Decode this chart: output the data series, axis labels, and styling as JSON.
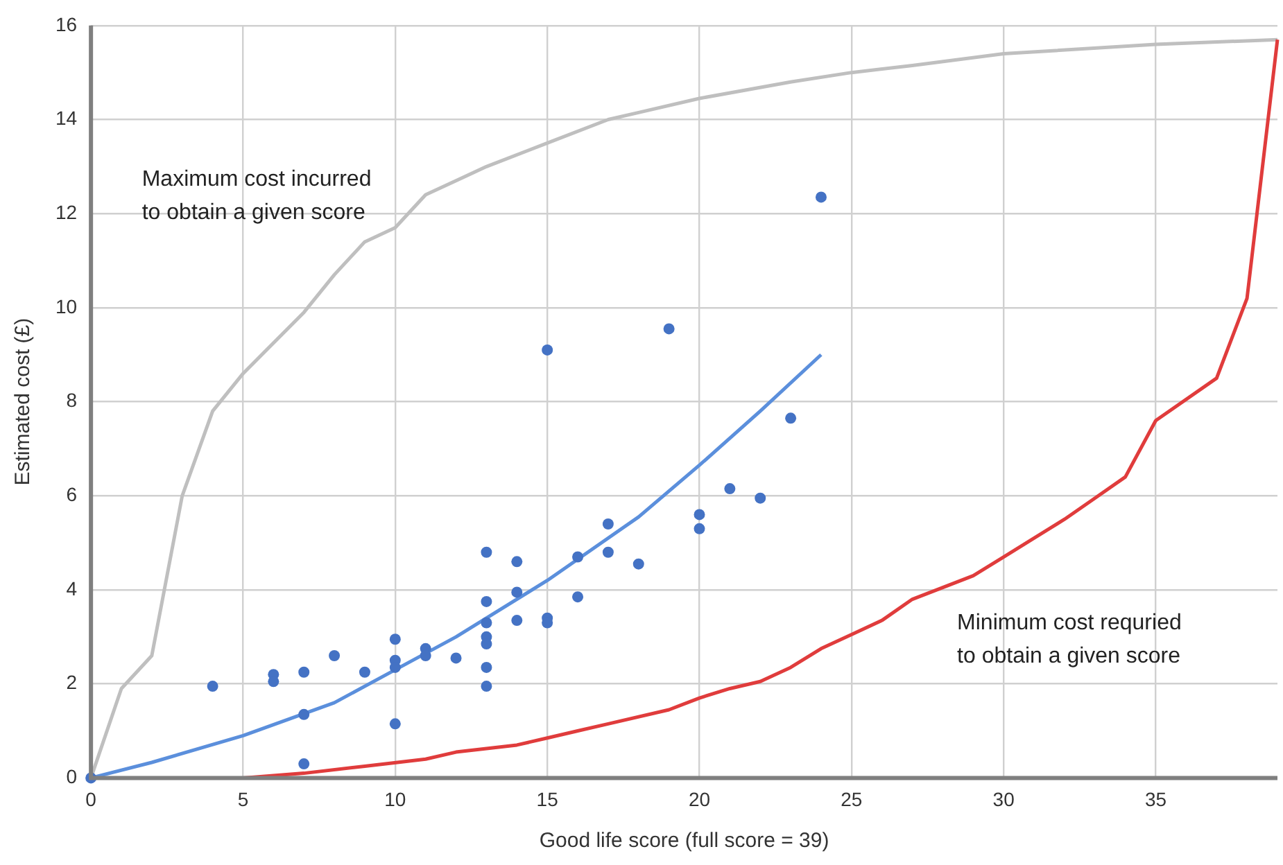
{
  "chart_data": {
    "type": "scatter",
    "xlabel": "Good life score (full score = 39)",
    "ylabel": "Estimated cost (£)",
    "xlim": [
      0,
      39
    ],
    "xticks": [
      0,
      5,
      10,
      15,
      20,
      25,
      30,
      35
    ],
    "ylim": [
      0,
      16
    ],
    "yticks": [
      0,
      2,
      4,
      6,
      8,
      10,
      12,
      14,
      16
    ],
    "grid": true,
    "legend": false,
    "annotations": [
      "Maximum cost incurred\nto obtain a given score",
      "Minimum cost requried\nto obtain a given score"
    ],
    "series": [
      {
        "type": "line",
        "color": "#bfbfbf",
        "marker": "none",
        "x": [
          0,
          1,
          2,
          3,
          4,
          5,
          7,
          8,
          9,
          10,
          11,
          13,
          15,
          17,
          18,
          20,
          23,
          25,
          27,
          30,
          35,
          39
        ],
        "values": [
          0,
          1.9,
          2.6,
          6.0,
          7.8,
          8.6,
          9.9,
          10.7,
          11.4,
          11.7,
          12.4,
          13.0,
          13.5,
          14.0,
          14.15,
          14.45,
          14.8,
          15.0,
          15.15,
          15.4,
          15.6,
          15.7
        ]
      },
      {
        "type": "line",
        "color": "#e03c3c",
        "marker": "none",
        "x": [
          0,
          5,
          7,
          9,
          11,
          12,
          14,
          15,
          16,
          17,
          19,
          20,
          21,
          22,
          23,
          24,
          25,
          26,
          27,
          28,
          29,
          30,
          31,
          32,
          33,
          34,
          35,
          37,
          38,
          39
        ],
        "values": [
          0,
          0,
          0.1,
          0.25,
          0.4,
          0.55,
          0.7,
          0.85,
          1.0,
          1.15,
          1.45,
          1.7,
          1.9,
          2.05,
          2.35,
          2.75,
          3.05,
          3.35,
          3.8,
          4.05,
          4.3,
          4.7,
          5.1,
          5.5,
          5.95,
          6.4,
          7.6,
          8.5,
          10.2,
          15.7
        ]
      },
      {
        "type": "line",
        "color": "#5b8fdc",
        "marker": "none",
        "x": [
          0,
          2,
          5,
          8,
          10,
          12,
          15,
          18,
          20,
          22,
          24
        ],
        "values": [
          0,
          0.33,
          0.9,
          1.6,
          2.3,
          3.0,
          4.2,
          5.55,
          6.65,
          7.8,
          9.0
        ]
      },
      {
        "type": "scatter",
        "color": "#4472c4",
        "marker": "circle",
        "x": [
          0,
          4,
          6,
          6,
          7,
          7,
          7,
          8,
          9,
          10,
          10,
          10,
          10,
          11,
          11,
          12,
          13,
          13,
          13,
          13,
          13,
          13,
          13,
          14,
          14,
          14,
          15,
          15,
          15,
          16,
          16,
          17,
          17,
          18,
          19,
          20,
          20,
          21,
          22,
          23,
          24
        ],
        "values": [
          0,
          1.95,
          2.2,
          2.05,
          2.25,
          1.35,
          0.3,
          2.6,
          2.25,
          2.95,
          2.5,
          2.35,
          1.15,
          2.75,
          2.6,
          2.55,
          4.8,
          3.75,
          3.3,
          3.0,
          2.85,
          2.35,
          1.95,
          4.6,
          3.95,
          3.35,
          9.1,
          3.4,
          3.3,
          4.7,
          3.85,
          5.4,
          4.8,
          4.55,
          9.55,
          5.6,
          5.3,
          6.15,
          5.95,
          7.65,
          12.35
        ]
      }
    ]
  }
}
